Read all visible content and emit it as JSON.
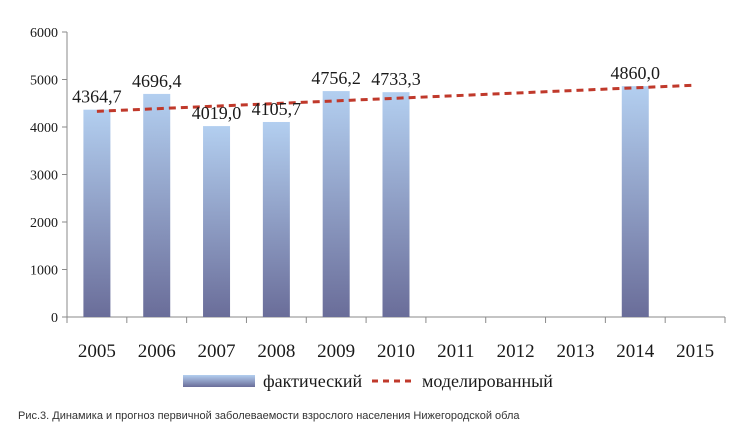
{
  "chart_data": {
    "type": "bar",
    "categories": [
      "2005",
      "2006",
      "2007",
      "2008",
      "2009",
      "2010",
      "2011",
      "2012",
      "2013",
      "2014",
      "2015"
    ],
    "series": [
      {
        "name": "фактический",
        "type": "bar",
        "values": [
          4364.7,
          4696.4,
          4019.0,
          4105.7,
          4756.2,
          4733.3,
          null,
          null,
          null,
          4860.0,
          null
        ],
        "labels": [
          "4364,7",
          "4696,4",
          "4019,0",
          "4105,7",
          "4756,2",
          "4733,3",
          "",
          "",
          "",
          "4860,0",
          ""
        ]
      },
      {
        "name": "моделированный",
        "type": "line",
        "values": [
          4330,
          4385,
          4440,
          4495,
          4550,
          4605,
          4660,
          4715,
          4770,
          4825,
          4880
        ]
      }
    ],
    "ylim": [
      0,
      6000
    ],
    "yticks": [
      "0",
      "1000",
      "2000",
      "3000",
      "4000",
      "5000",
      "6000"
    ],
    "grid": false,
    "legend": "bottom",
    "colors": {
      "bar_top": "#b3cff0",
      "bar_bottom": "#6a6d99",
      "trend": "#c0392b",
      "axis": "#8a8a8a"
    }
  },
  "caption": "Рис.3. Динамика и прогноз первичной заболеваемости взрослого населения Нижегородской обла"
}
